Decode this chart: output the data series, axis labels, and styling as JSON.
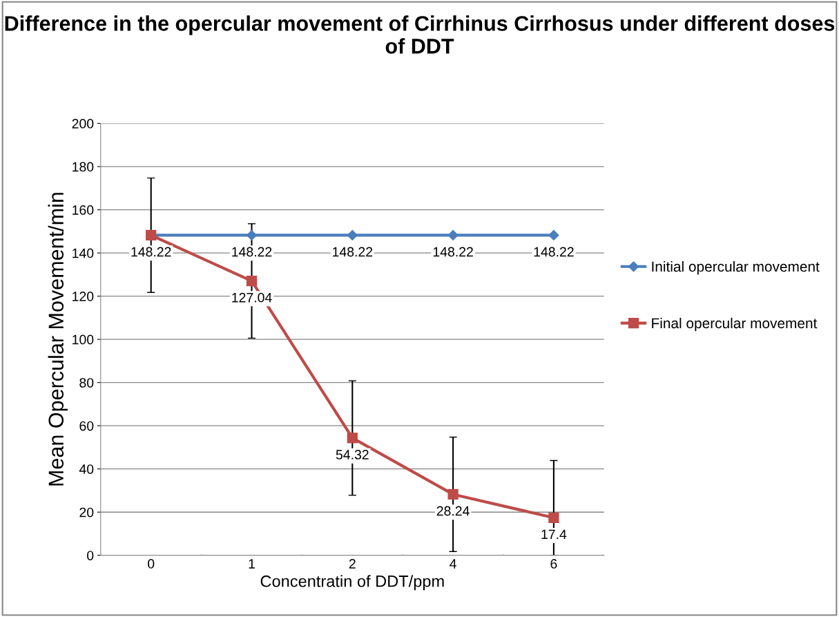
{
  "chart_data": {
    "type": "line",
    "title": "Difference in the opercular movement of Cirrhinus Cirrhosus under different doses of DDT",
    "xlabel": "Concentratin of DDT/ppm",
    "ylabel": "Mean Opercular Movement/min",
    "categories": [
      "0",
      "1",
      "2",
      "4",
      "6"
    ],
    "series": [
      {
        "name": "Initial opercular movement",
        "color": "#4a7ebb",
        "marker": "diamond",
        "values": [
          148.22,
          148.22,
          148.22,
          148.22,
          148.22
        ],
        "value_labels": [
          "148.22",
          "148.22",
          "148.22",
          "148.22",
          "148.22"
        ]
      },
      {
        "name": "Final opercular movement",
        "color": "#be4b48",
        "marker": "square",
        "values": [
          148.22,
          127.04,
          54.32,
          28.24,
          17.4
        ],
        "value_labels": [
          null,
          "127.04",
          "54.32",
          "28.24",
          "17.4"
        ],
        "errors": [
          26.5,
          26.5,
          26.5,
          26.5,
          [
            0,
            43.9
          ]
        ]
      }
    ],
    "ylim": [
      0,
      200
    ],
    "yticks": [
      0,
      20,
      40,
      60,
      80,
      100,
      120,
      140,
      160,
      180,
      200
    ],
    "grid": "y",
    "legend": "right",
    "line_style": "solid"
  }
}
